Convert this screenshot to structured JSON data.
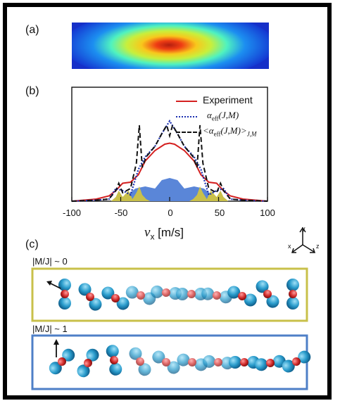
{
  "panels": {
    "a": "(a)",
    "b": "(b)",
    "c": "(c)"
  },
  "chart_data": {
    "type": "line",
    "xlabel": "v_x [m/s]",
    "xlim": [
      -100,
      100
    ],
    "xticks": [
      "-100",
      "-50",
      "0",
      "50",
      "100"
    ],
    "series": [
      {
        "name": "Experiment",
        "color": "#d42020",
        "style": "solid",
        "x": [
          -100,
          -75,
          -62,
          -55,
          -48,
          -40,
          -32,
          -25,
          -15,
          -5,
          0,
          5,
          15,
          25,
          32,
          40,
          48,
          55,
          62,
          75,
          100
        ],
        "y": [
          0.0,
          0.02,
          0.05,
          0.1,
          0.17,
          0.18,
          0.25,
          0.38,
          0.48,
          0.54,
          0.55,
          0.54,
          0.48,
          0.38,
          0.25,
          0.18,
          0.17,
          0.1,
          0.05,
          0.02,
          0.0
        ]
      },
      {
        "name": "α_eff(J,M)",
        "color": "#1a2fb0",
        "style": "dotted",
        "x": [
          -100,
          -75,
          -62,
          -55,
          -48,
          -40,
          -32,
          -25,
          -15,
          -8,
          0,
          8,
          15,
          25,
          32,
          40,
          48,
          55,
          62,
          75,
          100
        ],
        "y": [
          0.0,
          0.01,
          0.02,
          0.12,
          0.1,
          0.06,
          0.3,
          0.42,
          0.52,
          0.64,
          0.76,
          0.64,
          0.52,
          0.42,
          0.3,
          0.06,
          0.1,
          0.12,
          0.02,
          0.01,
          0.0
        ]
      },
      {
        "name": "<α_eff(J,M)>_J,M",
        "color": "#111111",
        "style": "dashed",
        "x": [
          -100,
          -75,
          -62,
          -55,
          -52,
          -48,
          -40,
          -34,
          -31,
          -28,
          -24,
          -15,
          -8,
          -3,
          0,
          3,
          8,
          15,
          24,
          28,
          31,
          34,
          40,
          48,
          52,
          55,
          62,
          75,
          100
        ],
        "y": [
          0.0,
          0.01,
          0.02,
          0.1,
          0.17,
          0.08,
          0.12,
          0.36,
          0.72,
          0.32,
          0.42,
          0.52,
          0.64,
          0.72,
          0.62,
          0.72,
          0.64,
          0.52,
          0.42,
          0.32,
          0.72,
          0.36,
          0.12,
          0.08,
          0.17,
          0.1,
          0.02,
          0.01,
          0.0
        ]
      }
    ],
    "fills": [
      {
        "name": "|M/J|~1 population",
        "color": "#5a86d8",
        "x": [
          -60,
          -50,
          -42,
          -35,
          -25,
          -15,
          -8,
          0,
          8,
          15,
          25,
          35,
          42,
          50,
          60
        ],
        "y": [
          0.0,
          0.02,
          0.07,
          0.12,
          0.14,
          0.12,
          0.2,
          0.22,
          0.2,
          0.12,
          0.14,
          0.12,
          0.07,
          0.02,
          0.0
        ]
      },
      {
        "name": "|M/J|~0 population",
        "color": "#c9c04a",
        "x": [
          -60,
          -55,
          -52,
          -48,
          -42,
          -38,
          -34,
          -31,
          -28,
          -24,
          -20,
          20,
          24,
          28,
          31,
          34,
          38,
          42,
          48,
          52,
          55,
          60
        ],
        "y": [
          0.0,
          0.04,
          0.1,
          0.04,
          0.1,
          0.02,
          0.08,
          0.14,
          0.06,
          0.02,
          0.0,
          0.0,
          0.02,
          0.06,
          0.14,
          0.08,
          0.02,
          0.1,
          0.04,
          0.1,
          0.04,
          0.0
        ]
      }
    ]
  },
  "legend": {
    "experiment": "Experiment",
    "alpha_eff": "α",
    "alpha_sub": "eff",
    "alpha_args": "(J,M)",
    "avg_open": "<",
    "avg_close": ">",
    "avg_sub": "J,M"
  },
  "axis": {
    "var": "v",
    "sub": "x",
    "unit": "[m/s]"
  },
  "axes3d": {
    "x": "x",
    "y": "y",
    "z": "z"
  },
  "molecules": {
    "top_label": "|M/J| ~ 0",
    "bottom_label": "|M/J| ~ 1",
    "top_border": "#c8c04a",
    "bottom_border": "#4e7fc7"
  }
}
